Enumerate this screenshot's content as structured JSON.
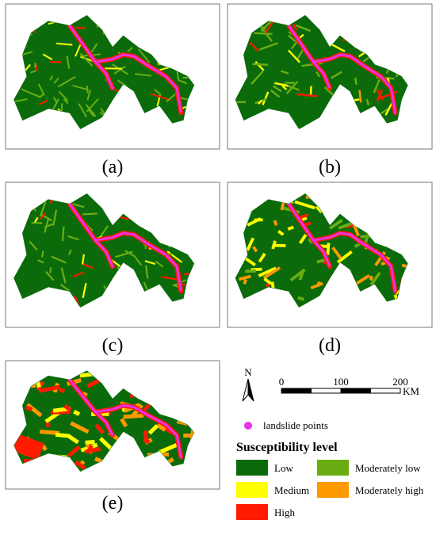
{
  "panels": [
    {
      "label": "(a)"
    },
    {
      "label": "(b)"
    },
    {
      "label": "(c)"
    },
    {
      "label": "(d)"
    },
    {
      "label": "(e)"
    }
  ],
  "north": "N",
  "scale": {
    "ticks": [
      0,
      100,
      200
    ],
    "unit": "KM"
  },
  "points_legend": {
    "label": "landslide points",
    "color": "#e633e6"
  },
  "legend": {
    "title": "Susceptibility level",
    "levels": [
      {
        "label": "Low",
        "color": "#0b6b0b"
      },
      {
        "label": "Moderately low",
        "color": "#6aad12"
      },
      {
        "label": "Medium",
        "color": "#ffff00"
      },
      {
        "label": "Moderately high",
        "color": "#ff9900"
      },
      {
        "label": "High",
        "color": "#ff1a00"
      }
    ]
  }
}
